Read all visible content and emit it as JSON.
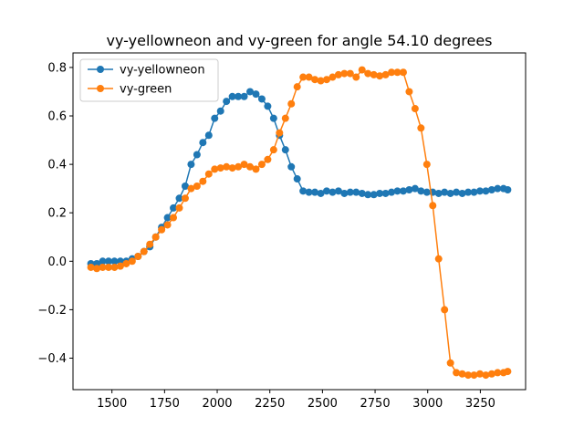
{
  "chart_data": {
    "type": "line",
    "title": "vy-yellowneon and vy-green for angle 54.10 degrees",
    "xlabel": "",
    "ylabel": "",
    "xlim": [
      1315,
      3465
    ],
    "ylim": [
      -0.53,
      0.86
    ],
    "xticks": [
      1500,
      1750,
      2000,
      2250,
      2500,
      2750,
      3000,
      3250
    ],
    "yticks": [
      -0.4,
      -0.2,
      0.0,
      0.2,
      0.4,
      0.6,
      0.8
    ],
    "ytick_labels": [
      "−0.4",
      "−0.2",
      "0.0",
      "0.2",
      "0.4",
      "0.6",
      "0.8"
    ],
    "grid": false,
    "legend_position": "top-left",
    "x": [
      1400,
      1428,
      1456,
      1484,
      1512,
      1540,
      1568,
      1596,
      1624,
      1652,
      1680,
      1708,
      1736,
      1764,
      1792,
      1820,
      1848,
      1876,
      1904,
      1932,
      1960,
      1988,
      2016,
      2044,
      2072,
      2100,
      2128,
      2156,
      2184,
      2212,
      2240,
      2268,
      2296,
      2324,
      2352,
      2380,
      2408,
      2436,
      2464,
      2492,
      2520,
      2548,
      2576,
      2604,
      2632,
      2660,
      2688,
      2716,
      2744,
      2772,
      2800,
      2828,
      2856,
      2884,
      2912,
      2940,
      2968,
      2996,
      3024,
      3052,
      3080,
      3108,
      3136,
      3164,
      3192,
      3220,
      3248,
      3276,
      3304,
      3332,
      3360,
      3380
    ],
    "series": [
      {
        "name": "vy-yellowneon",
        "color": "#1f77b4",
        "values": [
          -0.01,
          -0.01,
          0.0,
          0.0,
          0.0,
          0.0,
          0.0,
          0.01,
          0.02,
          0.04,
          0.06,
          0.1,
          0.14,
          0.18,
          0.22,
          0.26,
          0.31,
          0.4,
          0.44,
          0.49,
          0.52,
          0.59,
          0.62,
          0.66,
          0.68,
          0.68,
          0.68,
          0.7,
          0.69,
          0.67,
          0.64,
          0.59,
          0.52,
          0.46,
          0.39,
          0.34,
          0.29,
          0.285,
          0.285,
          0.28,
          0.29,
          0.285,
          0.29,
          0.28,
          0.285,
          0.285,
          0.28,
          0.275,
          0.275,
          0.28,
          0.28,
          0.285,
          0.29,
          0.29,
          0.295,
          0.3,
          0.29,
          0.285,
          0.285,
          0.28,
          0.285,
          0.28,
          0.285,
          0.28,
          0.285,
          0.285,
          0.29,
          0.29,
          0.295,
          0.3,
          0.3,
          0.295
        ]
      },
      {
        "name": "vy-green",
        "color": "#ff7f0e",
        "values": [
          -0.025,
          -0.03,
          -0.025,
          -0.025,
          -0.025,
          -0.02,
          -0.01,
          0.0,
          0.02,
          0.04,
          0.07,
          0.1,
          0.13,
          0.15,
          0.18,
          0.22,
          0.26,
          0.3,
          0.31,
          0.33,
          0.36,
          0.38,
          0.385,
          0.39,
          0.385,
          0.39,
          0.4,
          0.39,
          0.38,
          0.4,
          0.42,
          0.46,
          0.53,
          0.59,
          0.65,
          0.72,
          0.76,
          0.76,
          0.75,
          0.745,
          0.75,
          0.76,
          0.77,
          0.775,
          0.775,
          0.76,
          0.79,
          0.775,
          0.77,
          0.765,
          0.77,
          0.78,
          0.78,
          0.78,
          0.7,
          0.63,
          0.55,
          0.4,
          0.23,
          0.01,
          -0.2,
          -0.42,
          -0.46,
          -0.465,
          -0.47,
          -0.47,
          -0.465,
          -0.47,
          -0.465,
          -0.46,
          -0.46,
          -0.455
        ]
      }
    ]
  }
}
